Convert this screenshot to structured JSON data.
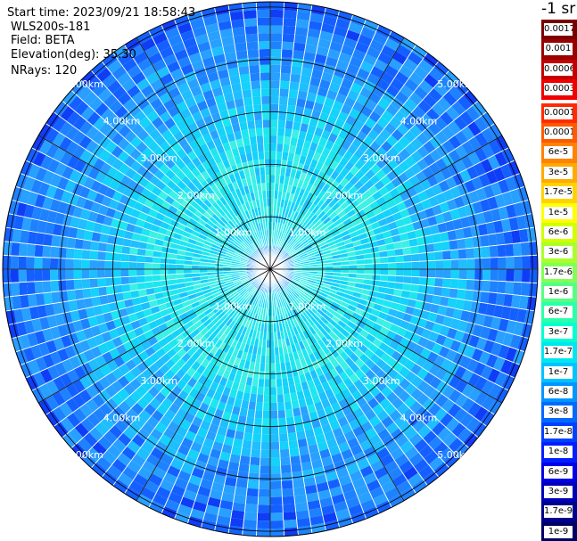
{
  "info": {
    "start_time": "Start time: 2023/09/21 18:58:43",
    "instrument": "WLS200s-181",
    "field": "Field: BETA",
    "elevation": "Elevation(deg): 35.30",
    "nrays": "NRays: 120"
  },
  "colorbar": {
    "units": "-1 sr",
    "entries": [
      {
        "label": "0.0017",
        "color": "#7a0000"
      },
      {
        "label": "0.001",
        "color": "#9a0000"
      },
      {
        "label": "0.0006",
        "color": "#c40000"
      },
      {
        "label": "0.0003",
        "color": "#f00000"
      },
      {
        "label": "0.00017",
        "color": "#ff2a00"
      },
      {
        "label": "0.0001",
        "color": "#ff5a00"
      },
      {
        "label": "6e-5",
        "color": "#ff8200"
      },
      {
        "label": "3e-5",
        "color": "#ffaa00"
      },
      {
        "label": "1.7e-5",
        "color": "#ffd200"
      },
      {
        "label": "1e-5",
        "color": "#ffff00"
      },
      {
        "label": "6e-6",
        "color": "#d2ff00"
      },
      {
        "label": "3e-6",
        "color": "#aaff2a"
      },
      {
        "label": "1.7e-6",
        "color": "#82ff55"
      },
      {
        "label": "1e-6",
        "color": "#55ff82"
      },
      {
        "label": "6e-7",
        "color": "#2affaa"
      },
      {
        "label": "3e-7",
        "color": "#00ffd2"
      },
      {
        "label": "1.7e-7",
        "color": "#00e6f0"
      },
      {
        "label": "1e-7",
        "color": "#00c3ff"
      },
      {
        "label": "6e-8",
        "color": "#0096ff"
      },
      {
        "label": "3e-8",
        "color": "#0069ff"
      },
      {
        "label": "1.7e-8",
        "color": "#0041ff"
      },
      {
        "label": "1e-8",
        "color": "#001eff"
      },
      {
        "label": "6e-9",
        "color": "#0000e6"
      },
      {
        "label": "3e-9",
        "color": "#0000b9"
      },
      {
        "label": "1.7e-9",
        "color": "#00008c"
      },
      {
        "label": "1e-9",
        "color": "#000064"
      }
    ]
  },
  "chart_data": {
    "type": "heatmap",
    "projection": "polar (PPI)",
    "field": "BETA",
    "units": "-1 sr",
    "elevation_deg": 35.3,
    "n_rays": 120,
    "range_rings_km": [
      1,
      2,
      3,
      4,
      5
    ],
    "ring_labels": [
      "1.00km",
      "2.00km",
      "3.00km",
      "4.00km",
      "5.00km"
    ],
    "max_range_km": 5.1,
    "radial_spokes_deg": [
      0,
      30,
      60,
      90,
      120,
      150,
      180,
      210,
      240,
      270,
      300,
      330
    ],
    "value_scale": "log",
    "value_range": [
      1e-09,
      0.0017
    ],
    "value_profile_by_range": [
      {
        "range_km": [
          0.0,
          0.5
        ],
        "typical": "3e-8 to 1e-7"
      },
      {
        "range_km": [
          0.5,
          2.7
        ],
        "typical": "1e-7 to 3e-7"
      },
      {
        "range_km": [
          2.7,
          4.0
        ],
        "typical": "6e-8 to 1.7e-7"
      },
      {
        "range_km": [
          4.0,
          5.1
        ],
        "typical": "1e-8 to 6e-8"
      }
    ]
  }
}
